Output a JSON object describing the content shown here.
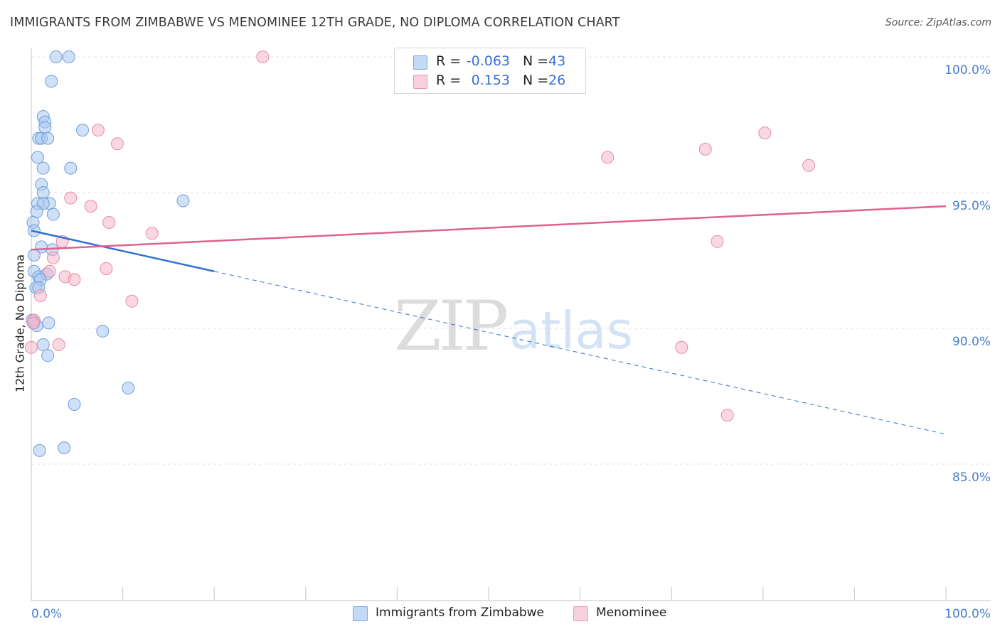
{
  "title": "IMMIGRANTS FROM ZIMBABWE VS MENOMINEE 12TH GRADE, NO DIPLOMA CORRELATION CHART",
  "source": "Source: ZipAtlas.com",
  "legend": {
    "rows": [
      {
        "r_label": "R =",
        "r_value": "-0.063",
        "n_label": "N =",
        "n_value": "43"
      },
      {
        "r_label": "R =",
        "r_value": "0.153",
        "n_label": "N =",
        "n_value": "26"
      }
    ]
  },
  "bottom_legend": [
    "Immigrants from Zimbabwe",
    "Menominee"
  ],
  "watermark": {
    "zip": "ZIP",
    "atlas": "atlas"
  },
  "colors": {
    "blue_fill": "#aac8f0",
    "blue_stroke": "#6f9fdc",
    "blue_line": "#2f72d0",
    "pink_fill": "#f6b8cb",
    "pink_stroke": "#e88aa8",
    "pink_line": "#e0608e",
    "tick_text": "#4a7fcc",
    "grid": "#e3e3e3"
  },
  "chart_data": {
    "type": "scatter",
    "title": "IMMIGRANTS FROM ZIMBABWE VS MENOMINEE 12TH GRADE, NO DIPLOMA CORRELATION CHART",
    "xlabel": "",
    "ylabel": "12th Grade, No Diploma",
    "xlim": [
      0,
      100
    ],
    "ylim": [
      80.5,
      101
    ],
    "x_tick_labels": [
      "0.0%",
      "100.0%"
    ],
    "y_ticks": [
      85,
      90,
      95,
      100
    ],
    "y_tick_labels": [
      "85.0%",
      "90.0%",
      "95.0%",
      "100.0%"
    ],
    "grid": true,
    "legend_placement": "top-center",
    "series": [
      {
        "name": "Immigrants from Zimbabwe",
        "color": "#aac8f0",
        "trend": {
          "x": [
            0,
            20
          ],
          "y": [
            93.6,
            92.1
          ],
          "dashed_extension": {
            "x": [
              20,
              100
            ],
            "y": [
              92.1,
              86.1
            ]
          }
        },
        "points": [
          [
            2.7,
            100.0
          ],
          [
            4.1,
            100.0
          ],
          [
            2.2,
            99.1
          ],
          [
            1.3,
            97.8
          ],
          [
            1.5,
            97.6
          ],
          [
            1.5,
            97.4
          ],
          [
            0.8,
            97.0
          ],
          [
            1.1,
            97.0
          ],
          [
            1.8,
            97.0
          ],
          [
            5.6,
            97.3
          ],
          [
            0.7,
            96.3
          ],
          [
            1.3,
            95.9
          ],
          [
            4.3,
            95.9
          ],
          [
            1.1,
            95.3
          ],
          [
            1.3,
            95.0
          ],
          [
            0.7,
            94.6
          ],
          [
            2.0,
            94.6
          ],
          [
            1.3,
            94.6
          ],
          [
            0.6,
            94.3
          ],
          [
            2.4,
            94.2
          ],
          [
            16.6,
            94.7
          ],
          [
            0.2,
            93.9
          ],
          [
            0.3,
            93.6
          ],
          [
            1.1,
            93.0
          ],
          [
            2.3,
            92.9
          ],
          [
            0.3,
            92.7
          ],
          [
            0.3,
            92.1
          ],
          [
            0.8,
            91.9
          ],
          [
            1.7,
            92.0
          ],
          [
            1.0,
            91.8
          ],
          [
            0.5,
            91.5
          ],
          [
            0.8,
            91.5
          ],
          [
            0.1,
            90.3
          ],
          [
            0.3,
            90.2
          ],
          [
            0.6,
            90.1
          ],
          [
            1.9,
            90.2
          ],
          [
            7.8,
            89.9
          ],
          [
            1.3,
            89.4
          ],
          [
            1.8,
            89.0
          ],
          [
            10.6,
            87.8
          ],
          [
            4.7,
            87.2
          ],
          [
            0.9,
            85.5
          ],
          [
            3.6,
            85.6
          ]
        ]
      },
      {
        "name": "Menominee",
        "color": "#f6b8cb",
        "trend": {
          "x": [
            0,
            100
          ],
          "y": [
            92.9,
            94.5
          ]
        },
        "points": [
          [
            25.3,
            100.0
          ],
          [
            7.3,
            97.3
          ],
          [
            9.4,
            96.8
          ],
          [
            63.0,
            96.3
          ],
          [
            73.7,
            96.6
          ],
          [
            80.2,
            97.2
          ],
          [
            85.0,
            96.0
          ],
          [
            4.3,
            94.8
          ],
          [
            6.5,
            94.5
          ],
          [
            8.5,
            93.9
          ],
          [
            13.2,
            93.5
          ],
          [
            3.4,
            93.2
          ],
          [
            75.0,
            93.2
          ],
          [
            2.4,
            92.6
          ],
          [
            8.2,
            92.2
          ],
          [
            2.0,
            92.1
          ],
          [
            3.7,
            91.9
          ],
          [
            4.7,
            91.8
          ],
          [
            1.0,
            91.2
          ],
          [
            11.0,
            91.0
          ],
          [
            0.3,
            90.3
          ],
          [
            0.2,
            90.2
          ],
          [
            3.0,
            89.4
          ],
          [
            71.1,
            89.3
          ],
          [
            0.0,
            89.3
          ],
          [
            76.1,
            86.8
          ]
        ]
      }
    ]
  }
}
